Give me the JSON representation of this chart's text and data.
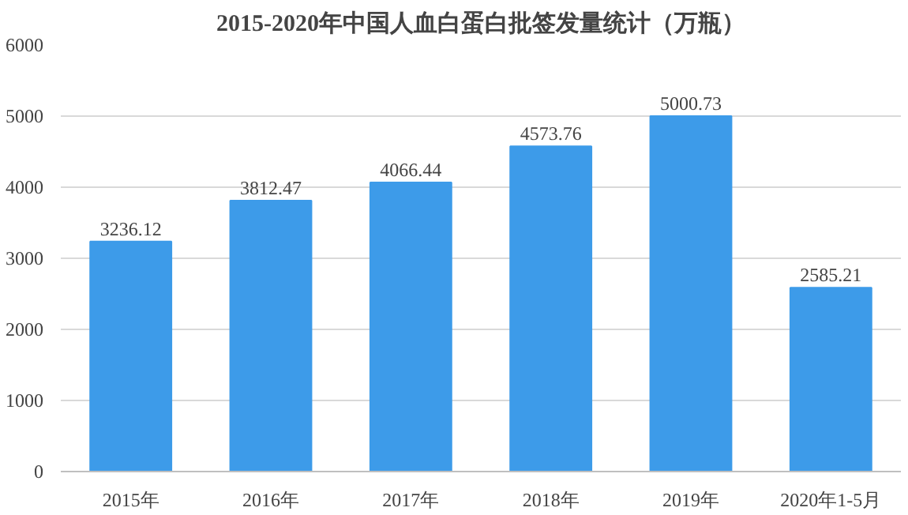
{
  "chart_data": {
    "type": "bar",
    "title": "2015-2020年中国人血白蛋白批签发量统计（万瓶）",
    "categories": [
      "2015年",
      "2016年",
      "2017年",
      "2018年",
      "2019年",
      "2020年1-5月"
    ],
    "values": [
      3236.12,
      3812.47,
      4066.44,
      4573.76,
      5000.73,
      2585.21
    ],
    "color": "#3d9be9",
    "ylim": [
      0,
      6000
    ],
    "yticks": [
      0,
      1000,
      2000,
      3000,
      4000,
      5000,
      6000
    ],
    "grid": "y",
    "data_labels": true
  }
}
